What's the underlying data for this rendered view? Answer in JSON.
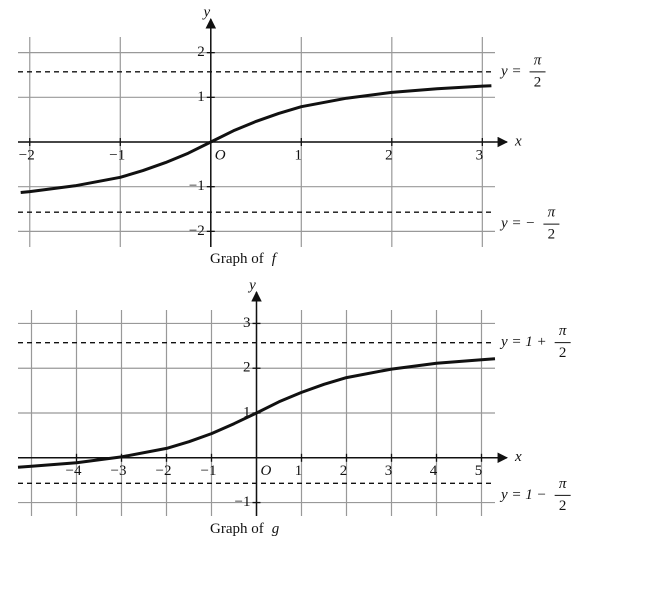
{
  "chart_data": [
    {
      "type": "line",
      "x_axis_label": "x",
      "y_axis_label": "y",
      "origin_label": "O",
      "caption": {
        "prefix": "Graph of",
        "function": "f"
      },
      "xlim": [
        -2.13,
        3.14
      ],
      "ylim": [
        -2.35,
        2.35
      ],
      "xticks": [
        {
          "value": -2,
          "label": "−2"
        },
        {
          "value": -1,
          "label": "−1"
        },
        1,
        2,
        3
      ],
      "yticks": [
        2,
        1,
        {
          "value": -1,
          "label": "−1"
        },
        {
          "value": -2,
          "label": "−2"
        }
      ],
      "grid": true,
      "grid_x": [
        -2,
        -1,
        0,
        1,
        2,
        3
      ],
      "grid_y": [
        -2,
        -1,
        0,
        1,
        2
      ],
      "series": [
        {
          "color": "#111111",
          "x": [
            -2.1,
            -2,
            -1.5,
            -1,
            -0.75,
            -0.5,
            -0.25,
            0,
            0.25,
            0.5,
            0.75,
            1,
            1.5,
            2,
            2.5,
            3,
            3.1
          ],
          "values": [
            -1.13,
            -1.11,
            -0.98,
            -0.79,
            -0.64,
            -0.46,
            -0.25,
            0,
            0.25,
            0.46,
            0.64,
            0.79,
            0.98,
            1.11,
            1.19,
            1.25,
            1.26
          ]
        }
      ],
      "asymptotes": [
        {
          "value": 1.5708,
          "label": {
            "lhs": "y =",
            "numerator": "π",
            "denominator": "2"
          }
        },
        {
          "value": -1.5708,
          "label": {
            "lhs": "y = −",
            "numerator": "π",
            "denominator": "2"
          }
        }
      ]
    },
    {
      "type": "line",
      "x_axis_label": "x",
      "y_axis_label": "y",
      "origin_label": "O",
      "caption": {
        "prefix": "Graph of",
        "function": "g"
      },
      "xlim": [
        -5.3,
        5.3
      ],
      "ylim": [
        -1.3,
        3.3
      ],
      "xticks": [
        {
          "value": -4,
          "label": "−4"
        },
        {
          "value": -3,
          "label": "−3"
        },
        {
          "value": -2,
          "label": "−2"
        },
        {
          "value": -1,
          "label": "−1"
        },
        1,
        2,
        3,
        4,
        5
      ],
      "yticks": [
        3,
        2,
        1,
        {
          "value": -1,
          "label": "−1"
        }
      ],
      "grid": true,
      "grid_x": [
        -5,
        -4,
        -3,
        -2,
        -1,
        0,
        1,
        2,
        3,
        4,
        5
      ],
      "grid_y": [
        -1,
        0,
        1,
        2,
        3
      ],
      "series": [
        {
          "color": "#111111",
          "x": [
            -5.3,
            -5,
            -4,
            -3,
            -2,
            -1.5,
            -1,
            -0.5,
            0,
            0.5,
            1,
            1.5,
            2,
            3,
            4,
            5,
            5.3
          ],
          "values": [
            -0.21,
            -0.19,
            -0.11,
            0.02,
            0.21,
            0.36,
            0.54,
            0.76,
            1,
            1.25,
            1.46,
            1.64,
            1.79,
            1.98,
            2.11,
            2.19,
            2.21
          ]
        }
      ],
      "asymptotes": [
        {
          "value": 2.5708,
          "label": {
            "lhs": "y = 1 +",
            "numerator": "π",
            "denominator": "2"
          }
        },
        {
          "value": -0.5708,
          "label": {
            "lhs": "y = 1 −",
            "numerator": "π",
            "denominator": "2"
          }
        }
      ]
    }
  ]
}
